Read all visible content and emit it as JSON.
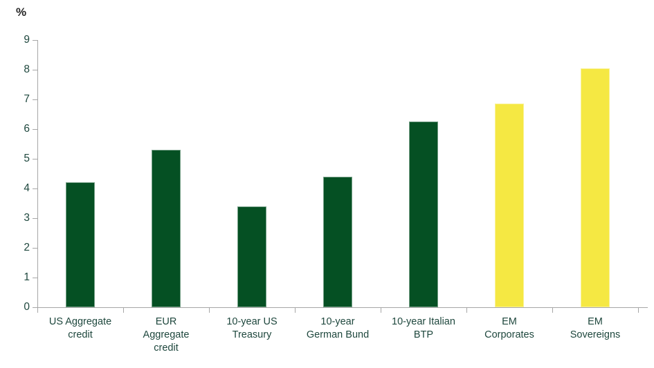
{
  "chart_data": {
    "type": "bar",
    "ylabel_unit": "%",
    "categories": [
      "US Aggregate credit",
      "EUR Aggregate credit",
      "10-year US Treasury",
      "10-year German Bund",
      "10-year Italian BTP",
      "EM Corporates",
      "EM Sovereigns"
    ],
    "category_label_lines": [
      [
        "US Aggregate",
        "credit"
      ],
      [
        "EUR",
        "Aggregate",
        "credit"
      ],
      [
        "10-year US",
        "Treasury"
      ],
      [
        "10-year",
        "German Bund"
      ],
      [
        "10-year Italian",
        "BTP"
      ],
      [
        "EM",
        "Corporates"
      ],
      [
        "EM",
        "Sovereigns"
      ]
    ],
    "values": [
      4.2,
      5.3,
      3.4,
      4.4,
      6.25,
      6.85,
      8.05
    ],
    "bar_colors": [
      "#055023",
      "#055023",
      "#055023",
      "#055023",
      "#055023",
      "#f5e843",
      "#f5e843"
    ],
    "yticks": [
      0,
      1,
      2,
      3,
      4,
      5,
      6,
      7,
      8,
      9
    ],
    "ylim": [
      0,
      9
    ],
    "grid": false,
    "legend": "none"
  },
  "colors": {
    "bar_green": "#055023",
    "bar_yellow": "#f5e843",
    "axis": "#a6a6a6",
    "label_text": "#1e473d",
    "unit_text": "#262626",
    "background": "#ffffff"
  }
}
